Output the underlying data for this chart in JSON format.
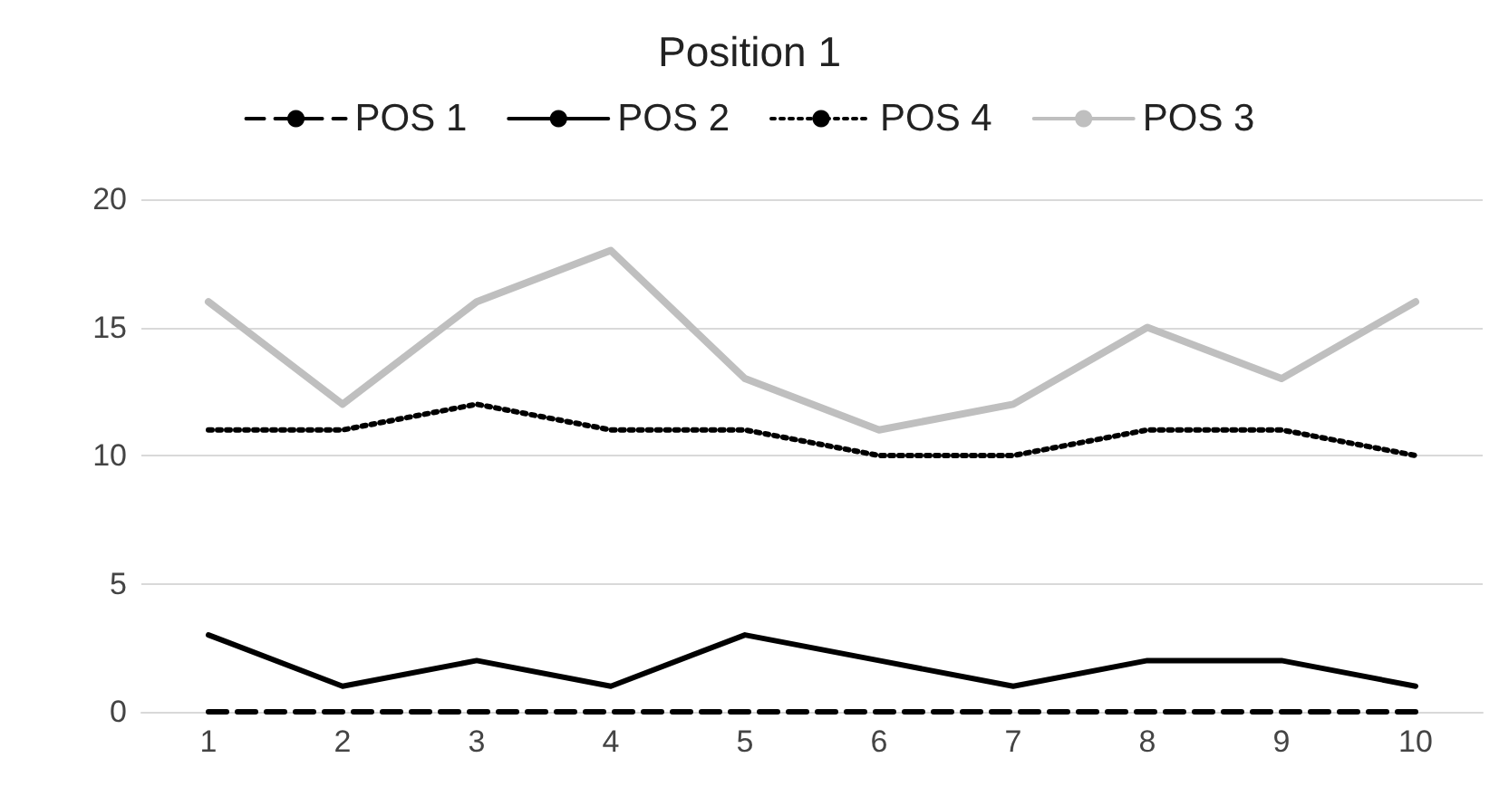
{
  "chart_data": {
    "type": "line",
    "title": "Position 1",
    "categories": [
      "1",
      "2",
      "3",
      "4",
      "5",
      "6",
      "7",
      "8",
      "9",
      "10"
    ],
    "series": [
      {
        "name": "POS 1",
        "color": "#000000",
        "line_style": "dashed",
        "values": [
          0,
          0,
          0,
          0,
          0,
          0,
          0,
          0,
          0,
          0
        ]
      },
      {
        "name": "POS 2",
        "color": "#000000",
        "line_style": "solid",
        "values": [
          3,
          1,
          2,
          1,
          3,
          2,
          1,
          2,
          2,
          1
        ]
      },
      {
        "name": "POS 4",
        "color": "#000000",
        "line_style": "dotted",
        "values": [
          11,
          11,
          12,
          11,
          11,
          10,
          10,
          11,
          11,
          10
        ]
      },
      {
        "name": "POS 3",
        "color": "#bfbfbf",
        "line_style": "solid",
        "values": [
          16,
          12,
          16,
          18,
          13,
          11,
          12,
          15,
          13,
          16
        ]
      }
    ],
    "ylim": [
      0,
      20
    ],
    "yticks": [
      0,
      5,
      10,
      15,
      20
    ],
    "grid": "y",
    "legend": "top",
    "marker": "none"
  }
}
